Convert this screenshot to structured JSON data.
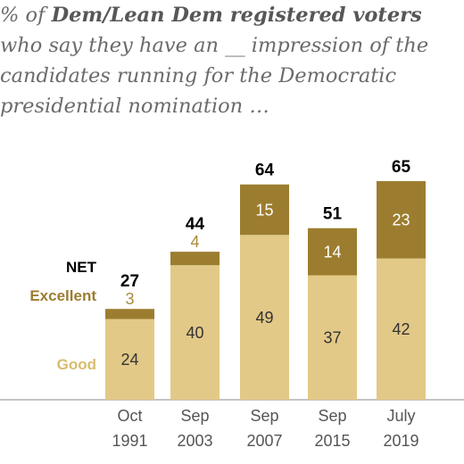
{
  "chart_data": {
    "type": "bar",
    "title_parts": {
      "lead": "% of ",
      "bold": "Dem/Lean Dem registered voters",
      "rest": " who say they have an __ impression of the candidates running for the Democratic presidential nomination …"
    },
    "categories": [
      {
        "month": "Oct",
        "year": "1991"
      },
      {
        "month": "Sep",
        "year": "2003"
      },
      {
        "month": "Sep",
        "year": "2007"
      },
      {
        "month": "Sep",
        "year": "2015"
      },
      {
        "month": "July",
        "year": "2019"
      }
    ],
    "series": [
      {
        "name": "Good",
        "values": [
          24,
          40,
          49,
          37,
          42
        ],
        "color": "#e3c987",
        "label_color": "#333333"
      },
      {
        "name": "Excellent",
        "values": [
          3,
          4,
          15,
          14,
          23
        ],
        "color": "#9c7d2f",
        "label_color": "#ffffff",
        "outside_label_color": "#a98a3b"
      }
    ],
    "net": {
      "name": "NET",
      "values": [
        27,
        44,
        64,
        51,
        65
      ]
    },
    "legend": {
      "net": "NET",
      "excellent": "Excellent",
      "good": "Good"
    },
    "ylim": [
      0,
      70
    ],
    "grid": false
  }
}
